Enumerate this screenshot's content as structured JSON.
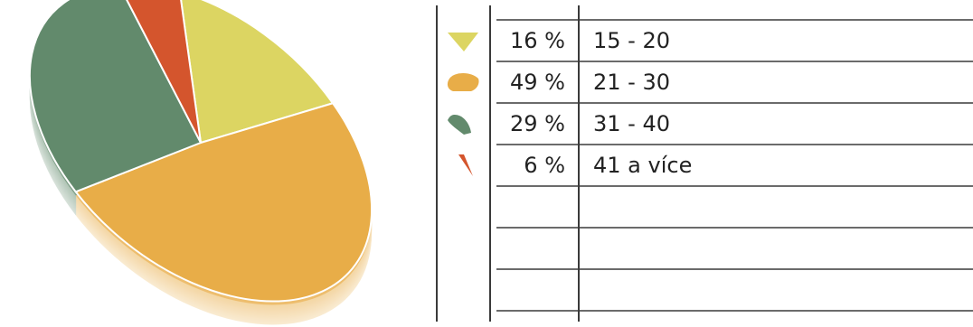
{
  "chart_data": {
    "type": "pie",
    "title": "",
    "legend_position": "right",
    "slices": [
      {
        "label": "15 - 20",
        "percent_label": "16 %",
        "value": 16,
        "color": "#dcd562"
      },
      {
        "label": "21 - 30",
        "percent_label": "49 %",
        "value": 49,
        "color": "#e8ad48"
      },
      {
        "label": "31 - 40",
        "percent_label": "29 %",
        "value": 29,
        "color": "#628a6c"
      },
      {
        "label": "41 a více",
        "percent_label": "6 %",
        "value": 6,
        "color": "#d4552d"
      }
    ],
    "empty_rows": 3
  }
}
